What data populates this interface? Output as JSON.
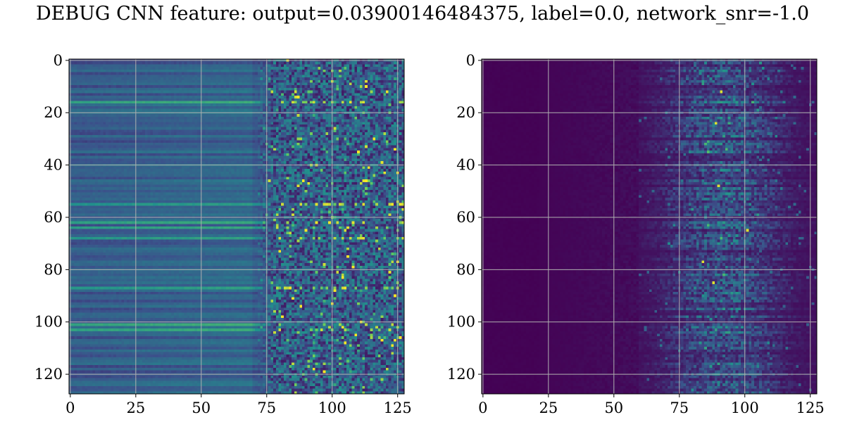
{
  "figure": {
    "title": "DEBUG CNN feature: output=0.03900146484375, label=0.0, network_snr=-1.0"
  },
  "colormap": [
    "#440154",
    "#3b528b",
    "#21918c",
    "#5ec962",
    "#fde725"
  ],
  "grid_color": "#b0b0b0",
  "chart_data": [
    {
      "type": "heatmap",
      "title": "",
      "xlabel": "",
      "ylabel": "",
      "shape": [
        128,
        128
      ],
      "xlim": [
        0,
        127
      ],
      "ylim": [
        127,
        0
      ],
      "x_ticks": [
        0,
        25,
        50,
        75,
        100,
        125
      ],
      "y_ticks": [
        0,
        20,
        40,
        60,
        80,
        100,
        120
      ],
      "x_tick_labels": [
        "0",
        "25",
        "50",
        "75",
        "100",
        "125"
      ],
      "y_tick_labels": [
        "0",
        "20",
        "40",
        "60",
        "80",
        "100",
        "120"
      ],
      "grid": true,
      "colormap": "viridis",
      "structure": "columns 0-70 show row-wise horizontal stripes of moderate value (blue-teal); columns 75-127 are noisy with scattered bright (green-yellow) pixels",
      "bright_rows": [
        16,
        55,
        62,
        64,
        68,
        87,
        101,
        103
      ]
    },
    {
      "type": "heatmap",
      "title": "",
      "xlabel": "",
      "ylabel": "",
      "shape": [
        128,
        128
      ],
      "xlim": [
        0,
        127
      ],
      "ylim": [
        127,
        0
      ],
      "x_ticks": [
        0,
        25,
        50,
        75,
        100,
        125
      ],
      "y_ticks": [
        0,
        20,
        40,
        60,
        80,
        100,
        120
      ],
      "x_tick_labels": [
        "0",
        "25",
        "50",
        "75",
        "100",
        "125"
      ],
      "y_tick_labels": [
        "0",
        "20",
        "40",
        "60",
        "80",
        "100",
        "120"
      ],
      "grid": true,
      "colormap": "viridis",
      "structure": "columns 0-22 near zero (dark purple); faint rise to column 60; columns 60-127 show streaky horizontal activations with bright spots near column 90",
      "bright_spots": [
        [
          91,
          12
        ],
        [
          89,
          24
        ],
        [
          90,
          48
        ],
        [
          101,
          65
        ],
        [
          84,
          77
        ],
        [
          88,
          85
        ]
      ]
    }
  ]
}
